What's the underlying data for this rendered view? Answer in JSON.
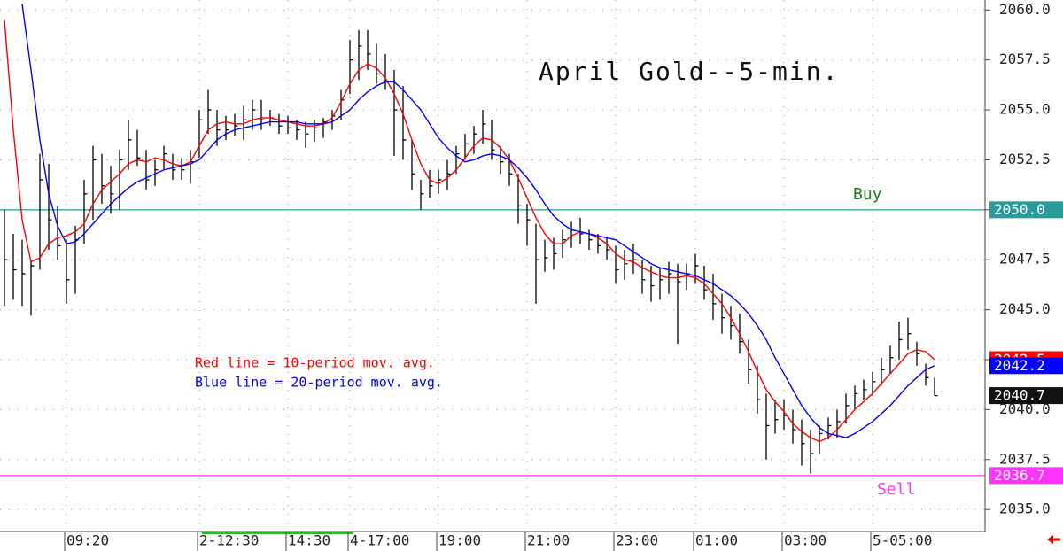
{
  "chart_data": {
    "type": "hlc",
    "title": "April Gold--5-min.",
    "annotations": [
      {
        "text": "Red line = 10-period mov. avg.",
        "color": "#ff0000"
      },
      {
        "text": "Blue line = 20-period mov. avg.",
        "color": "#0000ff"
      }
    ],
    "ylim": [
      2033.9,
      2060.5
    ],
    "yticks": [
      {
        "value": 2035,
        "label": "2035.0"
      },
      2037.5,
      {
        "value": 2040,
        "label": "2040.0"
      },
      2042.5,
      {
        "value": 2045,
        "label": "2045.0"
      },
      2047.5,
      {
        "value": 2050,
        "label": "2050.0"
      },
      2052.5,
      {
        "value": 2055,
        "label": "2055.0"
      },
      2057.5,
      {
        "value": 2060,
        "label": "2060.0"
      }
    ],
    "xlim": [
      -0.5,
      110.7
    ],
    "xticks": [
      {
        "value": 7,
        "label": "09:20"
      },
      {
        "value": 22,
        "label": "2-12:30"
      },
      {
        "value": 32,
        "label": "14:30"
      },
      {
        "value": 39,
        "label": "4-17:00"
      },
      {
        "value": 49,
        "label": "19:00"
      },
      {
        "value": 59,
        "label": "21:00"
      },
      {
        "value": 69,
        "label": "23:00"
      },
      {
        "value": 78,
        "label": "01:00"
      },
      {
        "value": 88,
        "label": "03:00"
      },
      {
        "value": 98,
        "label": "5-05:00"
      }
    ],
    "grid": true,
    "bars": {
      "color": "#000000",
      "last_label": "2040.7",
      "high": [
        2050,
        2048.8,
        2048.5,
        2047.5,
        2052.8,
        2052.3,
        2050.2,
        2048.5,
        2049.2,
        2051.5,
        2053.2,
        2052.8,
        2052.2,
        2053,
        2054.5,
        2054,
        2053,
        2052.5,
        2053.2,
        2052.8,
        2052.6,
        2053,
        2055,
        2056,
        2055,
        2054.7,
        2054.8,
        2055.2,
        2055.5,
        2055.5,
        2055,
        2054.8,
        2054.7,
        2054.5,
        2054.4,
        2054.5,
        2054.6,
        2055,
        2056,
        2058.5,
        2059,
        2059,
        2058.3,
        2057.8,
        2057,
        2056.2,
        2053.5,
        2051.5,
        2052,
        2052,
        2052.5,
        2053.2,
        2053.8,
        2054.2,
        2055,
        2054.5,
        2053.2,
        2052.8,
        2051.8,
        2050.3,
        2049.3,
        2048.5,
        2048.6,
        2049,
        2049.4,
        2049.6,
        2049,
        2048.8,
        2048.6,
        2048.2,
        2048,
        2048.3,
        2047.5,
        2047.2,
        2047.1,
        2047.4,
        2047.3,
        2047.3,
        2047.8,
        2047.2,
        2046.8,
        2045.8,
        2045.2,
        2044.8,
        2043.5,
        2042.2,
        2040.8,
        2040.5,
        2040.5,
        2040,
        2039.5,
        2039,
        2039.2,
        2039.6,
        2040,
        2040.8,
        2041.2,
        2041.5,
        2041.9,
        2042.6,
        2043.2,
        2044.4,
        2044.6,
        2043.4,
        2042.3,
        2041.6
      ],
      "low": [
        2045.2,
        2045.5,
        2045.2,
        2044.7,
        2047,
        2048,
        2047.5,
        2045.3,
        2045.8,
        2048.3,
        2049.5,
        2050.3,
        2049.8,
        2050,
        2052,
        2052.2,
        2051,
        2051.2,
        2052,
        2051.5,
        2051.5,
        2051.3,
        2052.6,
        2053.8,
        2053.2,
        2053.5,
        2053.7,
        2053.5,
        2054,
        2054,
        2054.2,
        2053.8,
        2053.8,
        2053.5,
        2053.1,
        2053.4,
        2053.6,
        2054,
        2054.5,
        2055.8,
        2056.5,
        2057,
        2056.3,
        2056,
        2052.7,
        2052.5,
        2051,
        2050,
        2050.6,
        2050.8,
        2051,
        2051.8,
        2052.5,
        2052.8,
        2053.3,
        2052.5,
        2051.8,
        2051.2,
        2049.3,
        2048.2,
        2045.3,
        2046.9,
        2047,
        2047.6,
        2048.1,
        2048.3,
        2048,
        2047.8,
        2047.5,
        2046.3,
        2046.5,
        2046.8,
        2045.8,
        2045.4,
        2045.5,
        2045.8,
        2043.3,
        2046,
        2046.3,
        2045.5,
        2044.5,
        2043.8,
        2043.5,
        2042.8,
        2041.3,
        2039.8,
        2037.5,
        2038.8,
        2039,
        2038.3,
        2037.2,
        2036.8,
        2037.8,
        2038.5,
        2038.6,
        2039.3,
        2040,
        2040.5,
        2040.7,
        2041.2,
        2041.8,
        2042.5,
        2043,
        2042.2,
        2041.2,
        2040.7
      ],
      "close": [
        2047.5,
        2047,
        2046.8,
        2047.2,
        2051.5,
        2049.5,
        2048.2,
        2046.5,
        2048.5,
        2050.8,
        2052.5,
        2051.2,
        2050.8,
        2052.5,
        2053.5,
        2052.6,
        2051.5,
        2052,
        2052.8,
        2052,
        2052,
        2052.4,
        2054.5,
        2055,
        2054,
        2054,
        2054.2,
        2054.5,
        2055,
        2054.5,
        2054.6,
        2054.2,
        2054.1,
        2054,
        2053.8,
        2054.1,
        2054.4,
        2054.7,
        2055.5,
        2057.5,
        2058.2,
        2057.8,
        2056.8,
        2056.4,
        2055,
        2053.5,
        2051.8,
        2050.8,
        2051.2,
        2051.5,
        2051.8,
        2052.8,
        2053.3,
        2053.8,
        2054.3,
        2053,
        2052.4,
        2051.8,
        2050.2,
        2049.5,
        2047.5,
        2047.6,
        2047.8,
        2048.5,
        2049,
        2048.8,
        2048.5,
        2048.2,
        2048,
        2047,
        2047.3,
        2047.5,
        2046.5,
        2046.2,
        2046.5,
        2046.8,
        2046.4,
        2046.8,
        2047.2,
        2046,
        2045.3,
        2044.6,
        2044.2,
        2043.4,
        2042,
        2040.5,
        2039.2,
        2039.5,
        2039.7,
        2039,
        2038.3,
        2037.8,
        2038.8,
        2039.2,
        2039.4,
        2040.2,
        2040.8,
        2041,
        2041.4,
        2042,
        2042.6,
        2043.5,
        2043.8,
        2042.8,
        2041.6,
        2040.7
      ]
    },
    "series": [
      {
        "color": "#ff0000",
        "last_label": "2042.5",
        "values": [
          2059.5,
          2054,
          2049.5,
          2047.4,
          2047.6,
          2048.3,
          2048.6,
          2048.7,
          2048.9,
          2049.3,
          2050.3,
          2051,
          2051.4,
          2051.8,
          2052.3,
          2052.5,
          2052.4,
          2052.6,
          2052.5,
          2052.3,
          2052.2,
          2052.4,
          2053.2,
          2054,
          2054.3,
          2054.4,
          2054.3,
          2054.3,
          2054.5,
          2054.6,
          2054.6,
          2054.5,
          2054.4,
          2054.3,
          2054.2,
          2054.2,
          2054.3,
          2054.6,
          2055.4,
          2056.3,
          2057,
          2057.3,
          2057.1,
          2056.6,
          2055.8,
          2054.8,
          2053.5,
          2052.3,
          2051.5,
          2051.3,
          2051.6,
          2052,
          2052.6,
          2053.2,
          2053.6,
          2053.5,
          2053.1,
          2052.5,
          2051.6,
          2050.6,
          2049.6,
          2048.8,
          2048.3,
          2048.3,
          2048.7,
          2048.9,
          2048.8,
          2048.6,
          2048.3,
          2047.8,
          2047.5,
          2047.4,
          2047.1,
          2046.9,
          2046.7,
          2046.6,
          2046.6,
          2046.7,
          2046.6,
          2046.3,
          2045.8,
          2045.3,
          2044.6,
          2043.8,
          2042.9,
          2041.9,
          2041,
          2040.4,
          2039.9,
          2039.3,
          2038.9,
          2038.6,
          2038.4,
          2038.6,
          2039,
          2039.5,
          2040,
          2040.4,
          2040.8,
          2041.3,
          2041.8,
          2042.3,
          2042.8,
          2043,
          2042.9,
          2042.5
        ]
      },
      {
        "color": "#0000ff",
        "last_label": "2042.2",
        "values": [
          null,
          null,
          2060.3,
          2057,
          2053.5,
          2050.8,
          2049.2,
          2048.3,
          2048.4,
          2048.8,
          2049.3,
          2049.8,
          2050.3,
          2050.7,
          2051.1,
          2051.4,
          2051.6,
          2051.8,
          2052,
          2052.1,
          2052.2,
          2052.3,
          2052.5,
          2053,
          2053.5,
          2053.8,
          2054,
          2054.1,
          2054.2,
          2054.3,
          2054.4,
          2054.4,
          2054.4,
          2054.4,
          2054.3,
          2054.3,
          2054.3,
          2054.4,
          2054.7,
          2055,
          2055.5,
          2055.9,
          2056.2,
          2056.4,
          2056.4,
          2056,
          2055.5,
          2055,
          2054.3,
          2053.6,
          2053.1,
          2052.7,
          2052.4,
          2052.5,
          2052.7,
          2052.8,
          2052.7,
          2052.5,
          2052.1,
          2051.6,
          2051,
          2050.3,
          2049.7,
          2049.3,
          2049,
          2048.9,
          2048.8,
          2048.7,
          2048.6,
          2048.5,
          2048.2,
          2047.9,
          2047.6,
          2047.3,
          2047.1,
          2047,
          2046.9,
          2046.8,
          2046.7,
          2046.5,
          2046.3,
          2046,
          2045.7,
          2045.3,
          2044.8,
          2044.2,
          2043.5,
          2042.6,
          2041.8,
          2041,
          2040.2,
          2039.6,
          2039.1,
          2038.8,
          2038.7,
          2038.6,
          2038.8,
          2039.1,
          2039.4,
          2039.8,
          2040.2,
          2040.7,
          2041.2,
          2041.6,
          2042,
          2042.2
        ]
      }
    ],
    "hlines": [
      {
        "label": "Buy",
        "value": 2050,
        "value_label": "2050.0",
        "color": "#2a9a9a",
        "label_color": "#1a7a1a"
      },
      {
        "label": "Sell",
        "value": 2036.7,
        "value_label": "2036.7",
        "color": "#ff33ff",
        "label_color": "#ff33ff"
      }
    ]
  }
}
